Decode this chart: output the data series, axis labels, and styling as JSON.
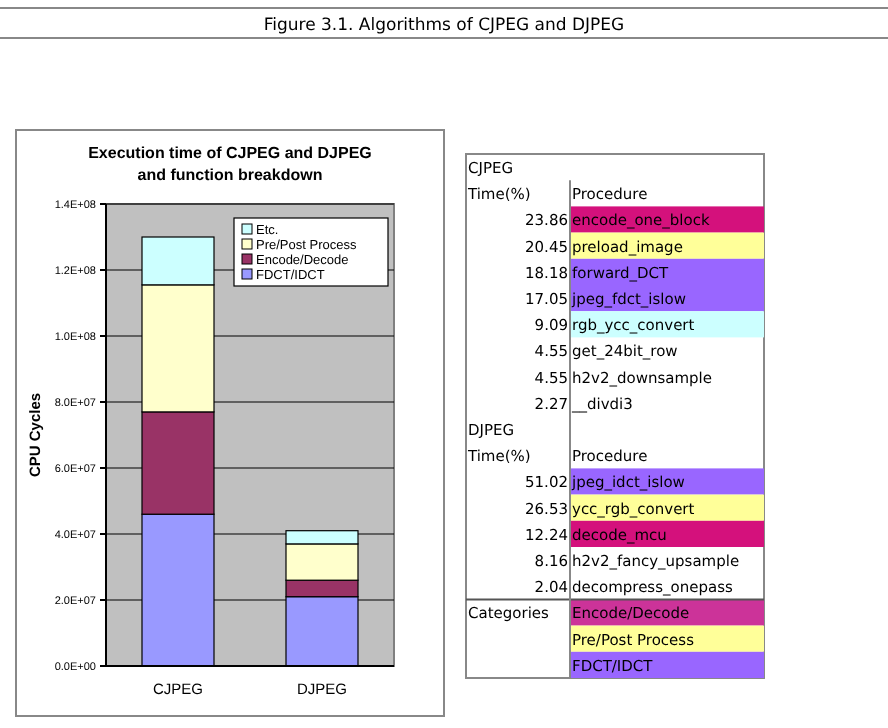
{
  "chart_data": [
    {
      "type": "bar",
      "title": "Execution time of CJPEG and DJPEG\nand function breakdown",
      "ylabel": "CPU Cycles",
      "annotations": [
        "Figure 3.1. Algorithms of CJPEG and DJPEG"
      ],
      "categories": [
        "CJPEG",
        "DJPEG"
      ],
      "stacked": true,
      "grid": "y",
      "legend": "top right",
      "ylim": [
        0,
        140000000
      ],
      "yticks": [
        {
          "value": 0,
          "label": "0.0E+00"
        },
        {
          "value": 20000000,
          "label": "2.0E+07"
        },
        {
          "value": 40000000,
          "label": "4.0E+07"
        },
        {
          "value": 60000000,
          "label": "6.0E+07"
        },
        {
          "value": 80000000,
          "label": "8.0E+07"
        },
        {
          "value": 100000000,
          "label": "1.0E+08"
        },
        {
          "value": 120000000,
          "label": "1.2E+08"
        },
        {
          "value": 140000000,
          "label": "1.4E+08"
        }
      ],
      "series": [
        {
          "name": "FDCT/IDCT",
          "color": "#9999ff",
          "values": [
            46000000,
            21000000
          ]
        },
        {
          "name": "Encode/Decode",
          "color": "#993366",
          "values": [
            31000000,
            5000000
          ]
        },
        {
          "name": "Pre/Post Process",
          "color": "#ffffcc",
          "values": [
            38500000,
            11000000
          ]
        },
        {
          "name": "Etc.",
          "color": "#ccffff",
          "values": [
            14500000,
            4000000
          ]
        }
      ]
    },
    {
      "type": "other",
      "annotations": [
        "CJPEG",
        "Time(%)",
        "Procedure",
        "23.86",
        "encode_one_block",
        "20.45",
        "preload_image",
        "18.18",
        "forward_DCT",
        "17.05",
        "jpeg_fdct_islow",
        "9.09",
        "rgb_ycc_convert",
        "4.55",
        "get_24bit_row",
        "4.55",
        "h2v2_downsample",
        "2.27",
        "__divdi3",
        "DJPEG",
        "Time(%)",
        "Procedure",
        "51.02",
        "jpeg_idct_islow",
        "26.53",
        "ycc_rgb_convert",
        "12.24",
        "decode_mcu",
        "8.16",
        "h2v2_fancy_upsample",
        "2.04",
        "decompress_onepass",
        "Categories",
        "Encode/Decode",
        "Pre/Post Process",
        "FDCT/IDCT"
      ],
      "colors": [
        null,
        null,
        null,
        null,
        "#d4117c",
        null,
        "#ffff99",
        null,
        "#9966ff",
        null,
        "#9966ff",
        null,
        "#ccffff",
        null,
        null,
        null,
        null,
        null,
        null,
        null,
        null,
        null,
        null,
        "#9966ff",
        null,
        "#ffff99",
        null,
        "#d4117c",
        null,
        null,
        null,
        null,
        null,
        "#cc3399",
        "#ffff99",
        "#9966ff"
      ]
    }
  ]
}
